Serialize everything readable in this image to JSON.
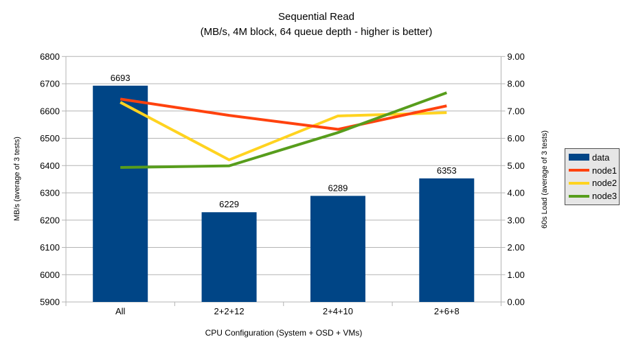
{
  "title": "Sequential Read",
  "subtitle": "(MB/s, 4M block, 64 queue depth - higher is better)",
  "colors": {
    "bar": "#004586",
    "node1": "#ff420e",
    "node2": "#ffd320",
    "node3": "#579d1c",
    "grid": "#b3b3b3",
    "axis": "#b3b3b3",
    "legend_bg": "#e6e6e6",
    "legend_border": "#4d4d4d",
    "text": "#000000"
  },
  "chart_data": {
    "type": "bar+line combo (bars on left axis, lines on right axis)",
    "categories": [
      "All",
      "2+2+12",
      "2+4+10",
      "2+6+8"
    ],
    "bar_series": {
      "name": "data",
      "axis": "left",
      "values": [
        6693,
        6229,
        6289,
        6353
      ]
    },
    "line_series": [
      {
        "name": "node1",
        "axis": "right",
        "color": "node1",
        "values": [
          7.44,
          6.84,
          6.33,
          7.19
        ]
      },
      {
        "name": "node2",
        "axis": "right",
        "color": "node2",
        "values": [
          7.32,
          5.21,
          6.82,
          6.94
        ]
      },
      {
        "name": "node3",
        "axis": "right",
        "color": "node3",
        "values": [
          4.93,
          4.99,
          6.21,
          7.67
        ]
      }
    ],
    "draw_order": [
      "node2",
      "node1",
      "node3"
    ],
    "left_axis": {
      "label": "MB/s (average of 3 tests)",
      "min": 5900,
      "max": 6800,
      "step": 100
    },
    "right_axis": {
      "label": "60s Load (average of 3 tests)",
      "min": 0,
      "max": 9,
      "step": 1,
      "decimals": 2
    },
    "x_axis": {
      "label": "CPU Configuration (System + OSD + VMs)"
    },
    "grid": "horizontal gridlines on",
    "legend": {
      "position": "right",
      "entries": [
        {
          "label": "data",
          "color": "bar",
          "swatch": "bar"
        },
        {
          "label": "node1",
          "color": "node1",
          "swatch": "line"
        },
        {
          "label": "node2",
          "color": "node2",
          "swatch": "line"
        },
        {
          "label": "node3",
          "color": "node3",
          "swatch": "line"
        }
      ]
    }
  }
}
